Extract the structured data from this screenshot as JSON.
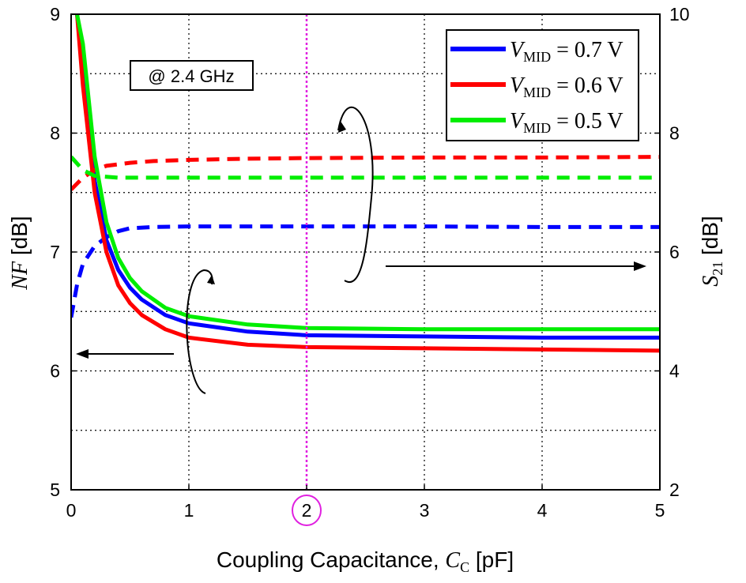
{
  "chart_data": {
    "type": "line",
    "annotation": "@ 2.4 GHz",
    "xlabel": {
      "text": "Coupling Capacitance, ",
      "var": "C",
      "sub": "C",
      "unit": " [pF]"
    },
    "ylabel_left": {
      "var": "NF",
      "unit": " [dB]"
    },
    "ylabel_right": {
      "var": "S",
      "sub": "21",
      "unit": " [dB]"
    },
    "xlim": [
      0,
      5
    ],
    "ylim_left": [
      5,
      9
    ],
    "ylim_right": [
      2,
      10
    ],
    "xticks": [
      "0",
      "1",
      "2",
      "3",
      "4",
      "5"
    ],
    "yticks_left": [
      "5",
      "6",
      "7",
      "8",
      "9"
    ],
    "yticks_right": [
      "2",
      "4",
      "6",
      "8",
      "10"
    ],
    "grid": true,
    "highlight_x": 2,
    "highlight_color": "#e020e0",
    "legend_position": "top-right",
    "series": [
      {
        "name": "V_MID = 0.7 V",
        "label_var": "V",
        "label_sub": "MID",
        "label_rest": " = 0.7 V",
        "color": "#0000ff",
        "nf": {
          "x": [
            0.05,
            0.1,
            0.2,
            0.3,
            0.4,
            0.5,
            0.6,
            0.8,
            1.0,
            1.5,
            2.0,
            3.0,
            4.0,
            5.0
          ],
          "y": [
            9.0,
            8.55,
            7.6,
            7.1,
            6.85,
            6.7,
            6.6,
            6.47,
            6.4,
            6.33,
            6.3,
            6.29,
            6.28,
            6.28
          ]
        },
        "s21": {
          "x": [
            0.0,
            0.05,
            0.1,
            0.2,
            0.3,
            0.4,
            0.5,
            0.7,
            1.0,
            1.5,
            2.0,
            3.0,
            4.0,
            5.0
          ],
          "y": [
            4.9,
            5.45,
            5.8,
            6.1,
            6.25,
            6.35,
            6.4,
            6.42,
            6.43,
            6.43,
            6.43,
            6.43,
            6.42,
            6.42
          ]
        }
      },
      {
        "name": "V_MID = 0.6 V",
        "label_var": "V",
        "label_sub": "MID",
        "label_rest": " = 0.6 V",
        "color": "#ff0000",
        "nf": {
          "x": [
            0.05,
            0.1,
            0.2,
            0.3,
            0.4,
            0.5,
            0.6,
            0.8,
            1.0,
            1.5,
            2.0,
            3.0,
            4.0,
            5.0
          ],
          "y": [
            9.0,
            8.4,
            7.5,
            7.0,
            6.72,
            6.57,
            6.47,
            6.35,
            6.28,
            6.22,
            6.2,
            6.19,
            6.18,
            6.17
          ]
        },
        "s21": {
          "x": [
            0.0,
            0.1,
            0.2,
            0.3,
            0.5,
            0.7,
            1.0,
            1.5,
            2.0,
            3.0,
            4.0,
            5.0
          ],
          "y": [
            7.05,
            7.25,
            7.38,
            7.45,
            7.5,
            7.53,
            7.55,
            7.57,
            7.58,
            7.59,
            7.59,
            7.6
          ]
        }
      },
      {
        "name": "V_MID = 0.5 V",
        "label_var": "V",
        "label_sub": "MID",
        "label_rest": " = 0.5 V",
        "color": "#00ee00",
        "nf": {
          "x": [
            0.05,
            0.1,
            0.2,
            0.3,
            0.4,
            0.5,
            0.6,
            0.8,
            1.0,
            1.5,
            2.0,
            3.0,
            4.0,
            5.0
          ],
          "y": [
            9.0,
            8.75,
            7.8,
            7.25,
            6.95,
            6.78,
            6.67,
            6.53,
            6.46,
            6.39,
            6.36,
            6.35,
            6.35,
            6.35
          ]
        },
        "s21": {
          "x": [
            0.0,
            0.1,
            0.2,
            0.4,
            0.7,
            1.0,
            2.0,
            3.0,
            4.0,
            5.0
          ],
          "y": [
            7.6,
            7.38,
            7.28,
            7.25,
            7.25,
            7.25,
            7.25,
            7.25,
            7.25,
            7.25
          ]
        }
      }
    ]
  }
}
